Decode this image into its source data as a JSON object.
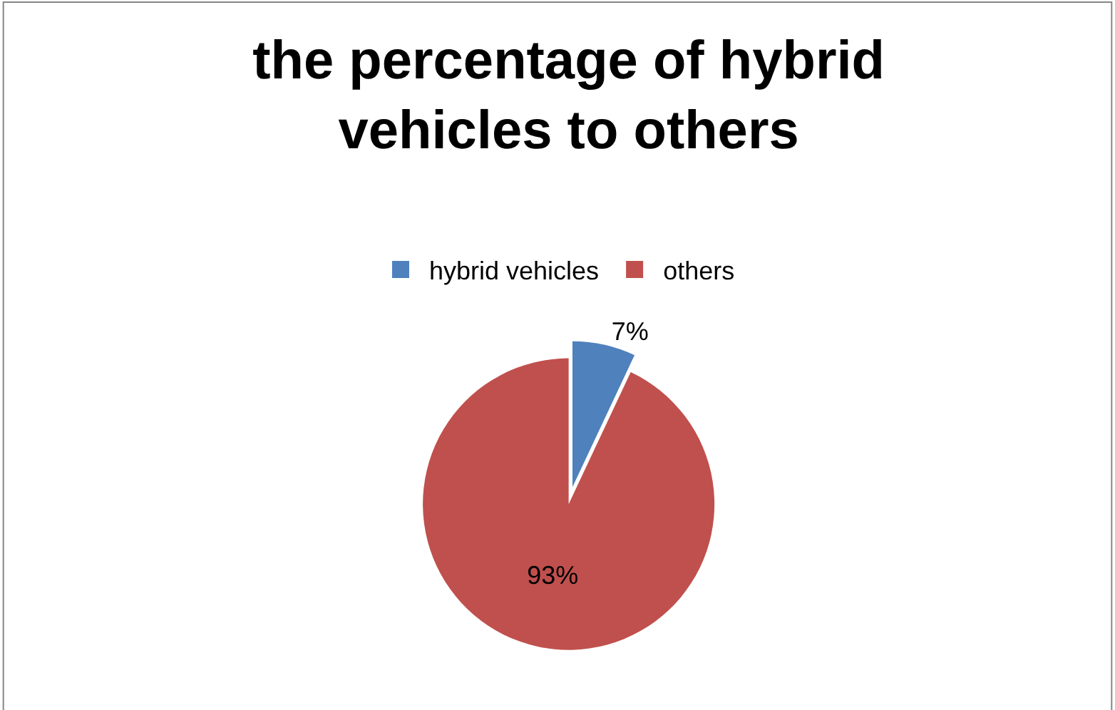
{
  "chart_data": {
    "type": "pie",
    "title": "the percentage of hybrid vehicles to others",
    "categories": [
      "hybrid vehicles",
      "others"
    ],
    "values": [
      7,
      93
    ],
    "colors": [
      "#4f81bd",
      "#c0504d"
    ],
    "value_labels": [
      "7%",
      "93%"
    ],
    "legend": "top"
  }
}
